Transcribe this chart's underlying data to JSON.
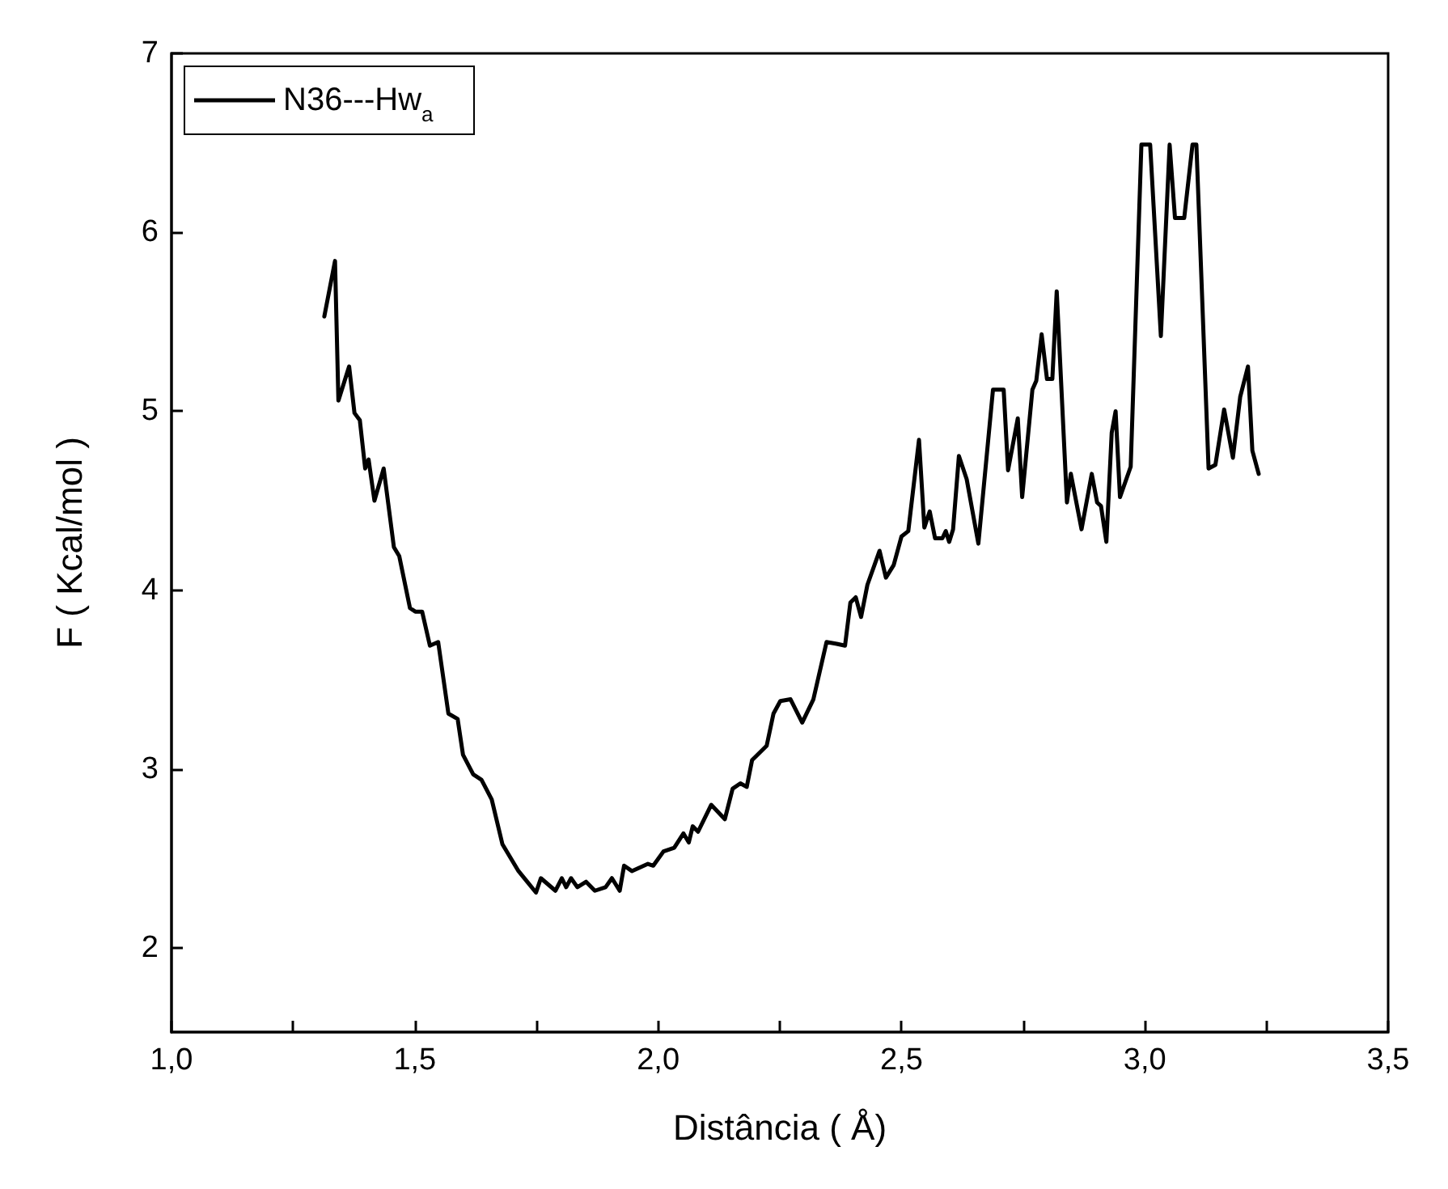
{
  "chart_data": {
    "type": "line",
    "xlabel": "Distância ( Å)",
    "ylabel": "F ( Kcal/mol )",
    "xlim": [
      1.0,
      3.5
    ],
    "ylim": [
      1.53,
      7
    ],
    "xticks": [
      {
        "value": 1.0,
        "label": "1,0"
      },
      {
        "value": 1.25,
        "label": null
      },
      {
        "value": 1.5,
        "label": "1,5"
      },
      {
        "value": 1.75,
        "label": null
      },
      {
        "value": 2.0,
        "label": "2,0"
      },
      {
        "value": 2.25,
        "label": null
      },
      {
        "value": 2.5,
        "label": "2,5"
      },
      {
        "value": 2.75,
        "label": null
      },
      {
        "value": 3.0,
        "label": "3,0"
      },
      {
        "value": 3.25,
        "label": null
      },
      {
        "value": 3.5,
        "label": "3,5"
      }
    ],
    "yticks": [
      2,
      3,
      4,
      5,
      6,
      7
    ],
    "grid": false,
    "legend": "top left",
    "marker": "none",
    "line_style": "solid",
    "series": [
      {
        "name": "N36---Hw$_{a}$",
        "color": "#000000",
        "x": [
          1.314,
          1.336,
          1.343,
          1.365,
          1.376,
          1.387,
          1.398,
          1.405,
          1.417,
          1.436,
          1.457,
          1.468,
          1.49,
          1.501,
          1.515,
          1.531,
          1.548,
          1.569,
          1.588,
          1.599,
          1.62,
          1.637,
          1.658,
          1.68,
          1.713,
          1.734,
          1.749,
          1.759,
          1.789,
          1.802,
          1.811,
          1.821,
          1.834,
          1.852,
          1.87,
          1.892,
          1.905,
          1.921,
          1.93,
          1.946,
          1.979,
          1.99,
          2.011,
          2.033,
          2.052,
          2.063,
          2.071,
          2.082,
          2.109,
          2.137,
          2.153,
          2.169,
          2.182,
          2.193,
          2.223,
          2.237,
          2.251,
          2.272,
          2.296,
          2.319,
          2.346,
          2.367,
          2.384,
          2.395,
          2.406,
          2.417,
          2.43,
          2.455,
          2.468,
          2.484,
          2.5,
          2.514,
          2.536,
          2.547,
          2.558,
          2.569,
          2.584,
          2.591,
          2.598,
          2.606,
          2.618,
          2.634,
          2.658,
          2.688,
          2.71,
          2.719,
          2.739,
          2.748,
          2.769,
          2.777,
          2.788,
          2.799,
          2.81,
          2.819,
          2.84,
          2.848,
          2.87,
          2.891,
          2.902,
          2.91,
          2.921,
          2.932,
          2.94,
          2.949,
          2.971,
          2.993,
          3.011,
          3.033,
          3.051,
          3.062,
          3.081,
          3.098,
          3.106,
          3.131,
          3.145,
          3.163,
          3.181,
          3.196,
          3.212,
          3.221,
          3.234
        ],
        "values": [
          5.53,
          5.84,
          5.06,
          5.25,
          4.99,
          4.95,
          4.68,
          4.73,
          4.5,
          4.68,
          4.24,
          4.19,
          3.9,
          3.88,
          3.88,
          3.69,
          3.71,
          3.31,
          3.28,
          3.08,
          2.97,
          2.94,
          2.83,
          2.58,
          2.43,
          2.36,
          2.31,
          2.39,
          2.32,
          2.39,
          2.34,
          2.39,
          2.34,
          2.37,
          2.32,
          2.34,
          2.39,
          2.32,
          2.46,
          2.43,
          2.47,
          2.46,
          2.54,
          2.56,
          2.64,
          2.59,
          2.68,
          2.65,
          2.8,
          2.72,
          2.89,
          2.92,
          2.9,
          3.05,
          3.13,
          3.31,
          3.38,
          3.39,
          3.26,
          3.39,
          3.71,
          3.7,
          3.69,
          3.93,
          3.96,
          3.85,
          4.03,
          4.22,
          4.07,
          4.14,
          4.3,
          4.33,
          4.84,
          4.35,
          4.44,
          4.29,
          4.29,
          4.33,
          4.27,
          4.34,
          4.75,
          4.62,
          4.26,
          5.12,
          5.12,
          4.67,
          4.96,
          4.52,
          5.12,
          5.17,
          5.43,
          5.18,
          5.18,
          5.67,
          4.49,
          4.65,
          4.34,
          4.65,
          4.49,
          4.47,
          4.27,
          4.88,
          5.0,
          4.52,
          4.69,
          6.49,
          6.49,
          5.42,
          6.49,
          6.08,
          6.08,
          6.49,
          6.49,
          4.68,
          4.7,
          5.01,
          4.74,
          5.08,
          5.25,
          4.78,
          4.65
        ]
      }
    ]
  }
}
